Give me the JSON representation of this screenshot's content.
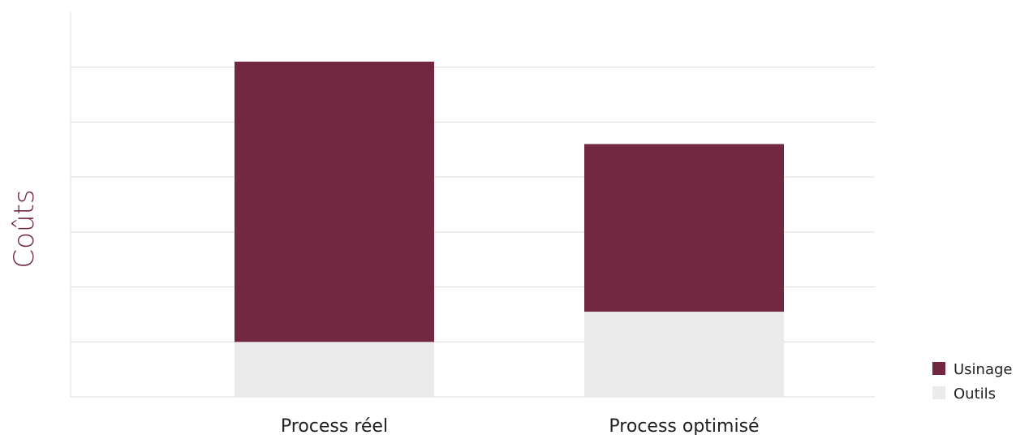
{
  "chart_data": {
    "type": "bar",
    "stacked": true,
    "categories": [
      "Process réel",
      "Process optimisé"
    ],
    "series": [
      {
        "name": "Outils",
        "values": [
          1.0,
          1.55
        ],
        "color": "#EAEBEA"
      },
      {
        "name": "Usinage",
        "values": [
          5.1,
          3.05
        ],
        "color": "#722840"
      }
    ],
    "title": "",
    "xlabel": "",
    "ylabel": "Coûts",
    "ylim": [
      0,
      7
    ],
    "grid": true,
    "legend": "bottom-right"
  }
}
